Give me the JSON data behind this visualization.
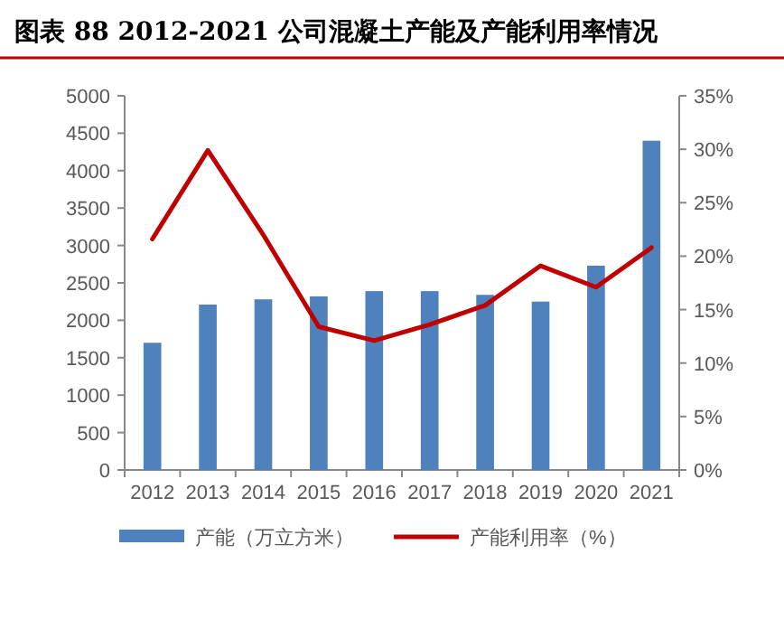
{
  "chart_data": {
    "type": "bar",
    "title": "图表 88 2012-2021 公司混凝土产能及产能利用率情况",
    "categories": [
      "2012",
      "2013",
      "2014",
      "2015",
      "2016",
      "2017",
      "2018",
      "2019",
      "2020",
      "2021"
    ],
    "series": [
      {
        "name": "产能（万立方米）",
        "color": "#4f81bd",
        "values": [
          1700,
          2210,
          2280,
          2320,
          2390,
          2390,
          2340,
          2250,
          2730,
          4400
        ]
      },
      {
        "name": "产能利用率（%）",
        "type": "line",
        "axis": "y2",
        "color": "#c00000",
        "values": [
          21.6,
          29.9,
          22.0,
          13.4,
          12.1,
          13.6,
          15.4,
          19.1,
          17.1,
          20.8
        ]
      }
    ],
    "ylim": [
      0,
      5000
    ],
    "yticks": [
      0,
      500,
      1000,
      1500,
      2000,
      2500,
      3000,
      3500,
      4000,
      4500,
      5000
    ],
    "y2lim": [
      0,
      35
    ],
    "y2ticks": [
      {
        "value": 0,
        "label": "0%"
      },
      {
        "value": 5,
        "label": "5%"
      },
      {
        "value": 10,
        "label": "10%"
      },
      {
        "value": 15,
        "label": "15%"
      },
      {
        "value": 20,
        "label": "20%"
      },
      {
        "value": 25,
        "label": "25%"
      },
      {
        "value": 30,
        "label": "30%"
      },
      {
        "value": 35,
        "label": "35%"
      }
    ],
    "legend": "bottom",
    "grid": false
  }
}
